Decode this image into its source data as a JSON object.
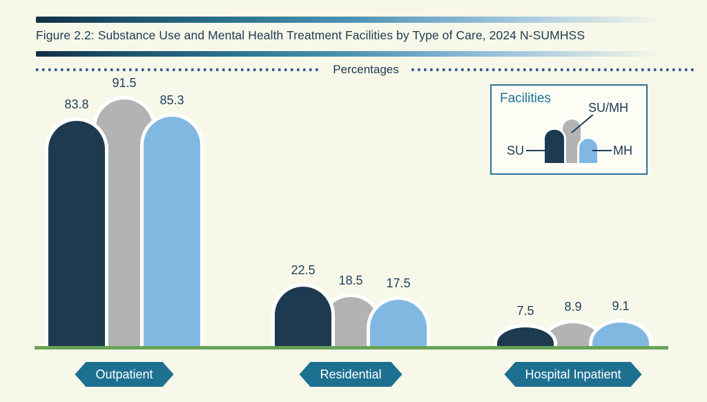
{
  "title": "Figure 2.2: Substance Use and Mental Health Treatment Facilities by Type of Care, 2024 N-SUMHSS",
  "axis_caption": "Percentages",
  "legend": {
    "title": "Facilities",
    "items": [
      {
        "id": "su",
        "label": "SU"
      },
      {
        "id": "sumh",
        "label": "SU/MH"
      },
      {
        "id": "mh",
        "label": "MH"
      }
    ]
  },
  "chart_data": {
    "type": "bar",
    "title": "Figure 2.2: Substance Use and Mental Health Treatment Facilities by Type of Care, 2024 N-SUMHSS",
    "categories": [
      "Outpatient",
      "Residential",
      "Hospital Inpatient"
    ],
    "series": [
      {
        "name": "SU",
        "color": "#1d3a50",
        "values": [
          83.8,
          22.5,
          7.5
        ]
      },
      {
        "name": "SU/MH",
        "color": "#b3b3b3",
        "values": [
          91.5,
          18.5,
          8.9
        ]
      },
      {
        "name": "MH",
        "color": "#80b8e1",
        "values": [
          85.3,
          17.5,
          9.1
        ]
      }
    ],
    "unit": "percent",
    "ylim": [
      0,
      100
    ],
    "grid": false,
    "value_labels": "above-bars",
    "legend_position": "top-right",
    "axis_caption": "Percentages"
  },
  "colors": {
    "background": "#f7f8e9",
    "su": "#1d3a50",
    "sumh": "#b3b3b3",
    "mh": "#80b8e1",
    "baseline_green": "#68a357",
    "badge_teal": "#1e7090",
    "legend_border": "#2d7396",
    "legend_title": "#1d7195",
    "text_navy": "#1d3954",
    "dotted_rule_blue": "#335f94"
  }
}
